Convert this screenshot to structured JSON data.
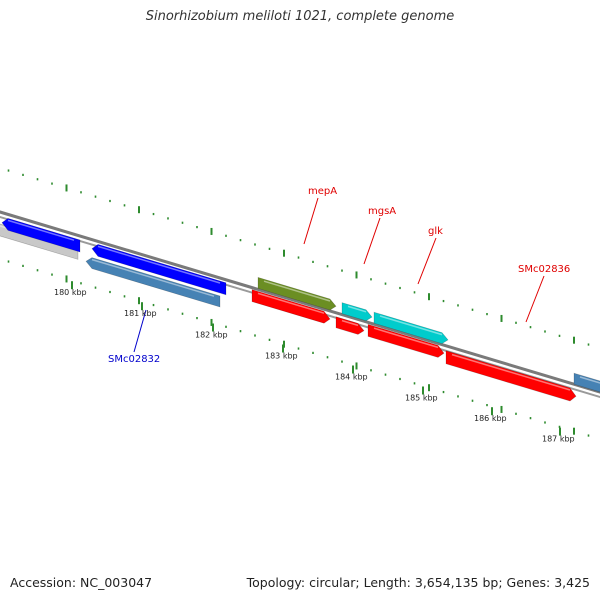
{
  "title": "Sinorhizobium meliloti 1021, complete genome",
  "footer": {
    "accession": "Accession: NC_003047",
    "info": "Topology: circular; Length: 3,654,135 bp; Genes: 3,425"
  },
  "colors": {
    "background": "#ffffff",
    "backbone": "#7a7a7a",
    "tick": "#2e8b2e",
    "forward_gene": "#ff0000",
    "reverse_gene": "#0000ff",
    "label_forward": "#e00000",
    "label_reverse": "#0000cc"
  },
  "scale_labels": [
    "180 kbp",
    "181 kbp",
    "182 kbp",
    "183 kbp",
    "184 kbp",
    "185 kbp",
    "186 kbp",
    "187 kbp"
  ],
  "gene_labels": [
    {
      "name": "mepA",
      "color": "#e00000"
    },
    {
      "name": "mgsA",
      "color": "#e00000"
    },
    {
      "name": "glk",
      "color": "#e00000"
    },
    {
      "name": "SMc02836",
      "color": "#e00000"
    },
    {
      "name": "SMc02832",
      "color": "#0000cc"
    }
  ],
  "features": [
    {
      "name": "feature-gray",
      "color": "#c8c8c8",
      "strand": "reverse"
    },
    {
      "name": "feature-blue-1",
      "color": "#0000ff",
      "strand": "reverse"
    },
    {
      "name": "feature-blue-2",
      "color": "#0000ff",
      "strand": "reverse"
    },
    {
      "name": "feature-steelblue",
      "color": "#4682b4",
      "strand": "reverse"
    },
    {
      "name": "feature-olive",
      "color": "#6b8e23",
      "strand": "forward"
    },
    {
      "name": "feature-red-1",
      "color": "#ff0000",
      "strand": "forward"
    },
    {
      "name": "feature-red-2",
      "color": "#ff0000",
      "strand": "forward"
    },
    {
      "name": "feature-cyan-1",
      "color": "#00cccc",
      "strand": "forward"
    },
    {
      "name": "feature-cyan-2",
      "color": "#00cccc",
      "strand": "forward"
    },
    {
      "name": "feature-red-3",
      "color": "#ff0000",
      "strand": "forward"
    },
    {
      "name": "feature-red-4",
      "color": "#ff0000",
      "strand": "forward"
    },
    {
      "name": "feature-steelblue-2",
      "color": "#4682b4",
      "strand": "forward"
    }
  ]
}
